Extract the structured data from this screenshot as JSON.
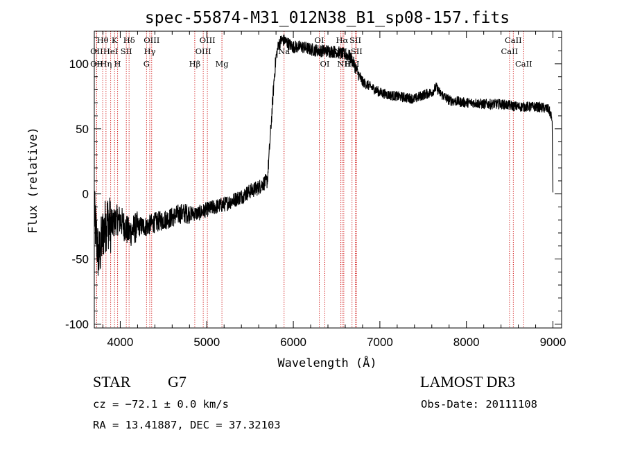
{
  "chart_data": {
    "type": "line",
    "title": "spec-55874-M31_012N38_B1_sp08-157.fits",
    "xlabel": "Wavelength (Å)",
    "ylabel": "Flux (relative)",
    "xlim": [
      3700,
      9100
    ],
    "ylim": [
      -103,
      125
    ],
    "xticks": [
      4000,
      5000,
      6000,
      7000,
      8000,
      9000
    ],
    "yticks": [
      -100,
      -50,
      0,
      50,
      100
    ],
    "series": [
      {
        "name": "spectrum",
        "x": [
          3700,
          3750,
          3800,
          3850,
          3900,
          3950,
          4000,
          4100,
          4200,
          4300,
          4400,
          4500,
          4600,
          4700,
          4800,
          4900,
          5000,
          5100,
          5200,
          5300,
          5400,
          5500,
          5600,
          5650,
          5700,
          5720,
          5750,
          5780,
          5800,
          5830,
          5860,
          5900,
          5950,
          6000,
          6100,
          6200,
          6300,
          6400,
          6500,
          6600,
          6650,
          6700,
          6750,
          6800,
          6900,
          7000,
          7100,
          7200,
          7300,
          7400,
          7500,
          7600,
          7650,
          7700,
          7800,
          7900,
          8000,
          8100,
          8200,
          8300,
          8400,
          8500,
          8600,
          8700,
          8800,
          8900,
          8950,
          8990,
          9000
        ],
        "y": [
          -15,
          -50,
          -30,
          -20,
          -25,
          -20,
          -20,
          -30,
          -25,
          -25,
          -22,
          -20,
          -18,
          -15,
          -15,
          -15,
          -12,
          -10,
          -8,
          -5,
          -2,
          2,
          5,
          8,
          10,
          30,
          60,
          90,
          105,
          115,
          118,
          118,
          115,
          113,
          113,
          111,
          110,
          110,
          109,
          107,
          106,
          100,
          92,
          86,
          82,
          78,
          76,
          75,
          74,
          73,
          76,
          78,
          82,
          77,
          72,
          71,
          70,
          70,
          69,
          69,
          69,
          68,
          67,
          67,
          67,
          66,
          65,
          58,
          0
        ]
      }
    ],
    "line_markers": [
      {
        "wavelength": 3797,
        "label": "Hθ",
        "row": 1
      },
      {
        "wavelength": 3727,
        "label": "OII",
        "row": 2
      },
      {
        "wavelength": 3727,
        "label": "OII",
        "row": 3
      },
      {
        "wavelength": 3835,
        "label": "Hη",
        "row": 3
      },
      {
        "wavelength": 3889,
        "label": "HeI",
        "row": 2
      },
      {
        "wavelength": 3934,
        "label": "K",
        "row": 1
      },
      {
        "wavelength": 3969,
        "label": "H",
        "row": 3
      },
      {
        "wavelength": 4070,
        "label": "SII",
        "row": 2
      },
      {
        "wavelength": 4102,
        "label": "Hδ",
        "row": 1
      },
      {
        "wavelength": 4304,
        "label": "G",
        "row": 3
      },
      {
        "wavelength": 4341,
        "label": "Hγ",
        "row": 2
      },
      {
        "wavelength": 4363,
        "label": "OIII",
        "row": 1
      },
      {
        "wavelength": 4861,
        "label": "Hβ",
        "row": 3
      },
      {
        "wavelength": 4959,
        "label": "OIII",
        "row": 2
      },
      {
        "wavelength": 5007,
        "label": "OIII",
        "row": 1
      },
      {
        "wavelength": 5175,
        "label": "Mg",
        "row": 3
      },
      {
        "wavelength": 5893,
        "label": "Na",
        "row": 2
      },
      {
        "wavelength": 6300,
        "label": "OI",
        "row": 1
      },
      {
        "wavelength": 6364,
        "label": "OI",
        "row": 3
      },
      {
        "wavelength": 6548,
        "label": "NII",
        "row": 2
      },
      {
        "wavelength": 6563,
        "label": "Hα",
        "row": 1
      },
      {
        "wavelength": 6583,
        "label": "NII",
        "row": 3
      },
      {
        "wavelength": 6678,
        "label": "HeI",
        "row": 3
      },
      {
        "wavelength": 6717,
        "label": "SII",
        "row": 1
      },
      {
        "wavelength": 6731,
        "label": "SII",
        "row": 2
      },
      {
        "wavelength": 8498,
        "label": "CaII",
        "row": 2
      },
      {
        "wavelength": 8542,
        "label": "CaII",
        "row": 1
      },
      {
        "wavelength": 8662,
        "label": "CaII",
        "row": 3
      }
    ]
  },
  "info": {
    "classification": "STAR",
    "subclass": "G7",
    "survey": "LAMOST DR3",
    "redshift_line": "cz = −72.1 ± 0.0 km/s",
    "obs_date_line": "Obs-Date: 20111108",
    "coords_line": "RA =  13.41887, DEC =  37.32103"
  },
  "colors": {
    "marker_line": "#cc0000",
    "spectrum": "#000000",
    "text": "#000000"
  }
}
